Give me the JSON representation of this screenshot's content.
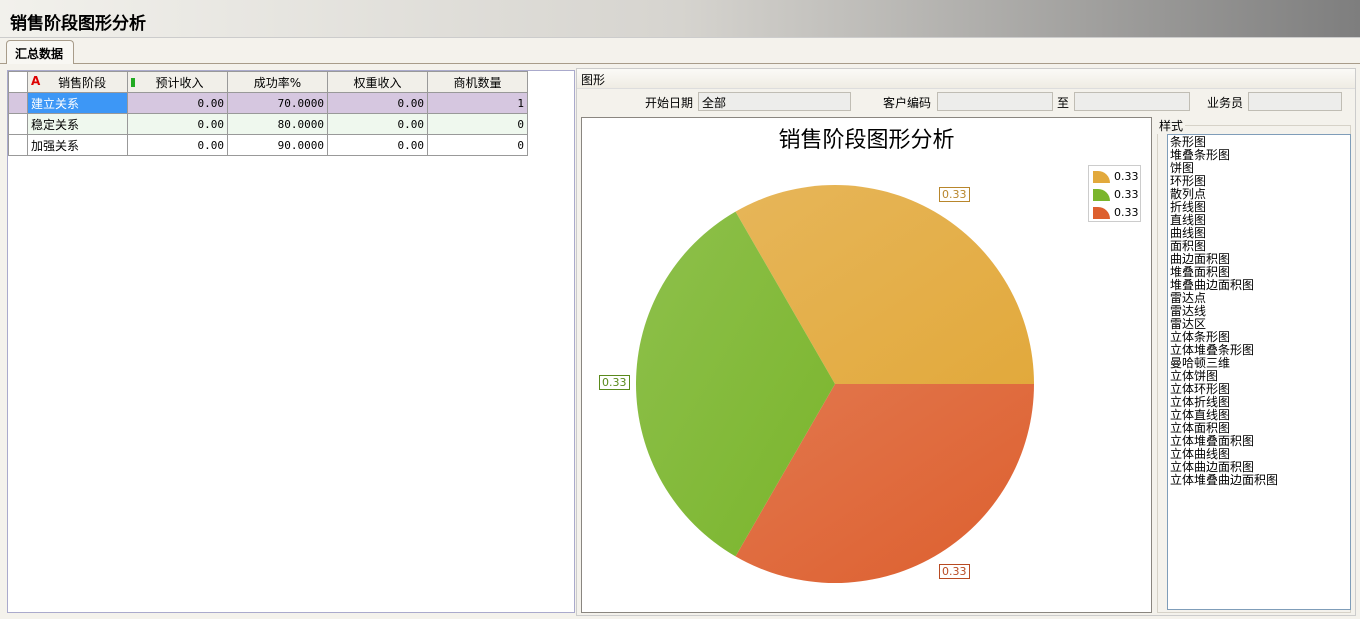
{
  "window": {
    "title": "销售阶段图形分析"
  },
  "tabs": [
    {
      "label": "汇总数据"
    }
  ],
  "grid": {
    "columns": [
      "销售阶段",
      "预计收入",
      "成功率%",
      "权重收入",
      "商机数量"
    ],
    "rows": [
      [
        "建立关系",
        "0.00",
        "70.0000",
        "0.00",
        "1"
      ],
      [
        "稳定关系",
        "0.00",
        "80.0000",
        "0.00",
        "0"
      ],
      [
        "加强关系",
        "0.00",
        "90.0000",
        "0.00",
        "0"
      ]
    ]
  },
  "panel": {
    "title": "图形",
    "filters": {
      "start_date_label": "开始日期",
      "start_date_value": "全部",
      "customer_code_label": "客户编码",
      "customer_code_value": "",
      "to_label": "至",
      "to_value": "",
      "salesman_label": "业务员",
      "salesman_value": ""
    },
    "style_label": "样式",
    "styles": [
      "条形图",
      "堆叠条形图",
      "饼图",
      "环形图",
      "散列点",
      "折线图",
      "直线图",
      "曲线图",
      "面积图",
      "曲边面积图",
      "堆叠面积图",
      "堆叠曲边面积图",
      "雷达点",
      "雷达线",
      "雷达区",
      "立体条形图",
      "立体堆叠条形图",
      "曼哈顿三维",
      "立体饼图",
      "立体环形图",
      "立体折线图",
      "立体直线图",
      "立体面积图",
      "立体堆叠面积图",
      "立体曲线图",
      "立体曲边面积图",
      "立体堆叠曲边面积图"
    ]
  },
  "chart_data": {
    "type": "pie",
    "title": "销售阶段图形分析",
    "legend_position": "top-right",
    "slices": [
      {
        "label": "0.33",
        "value": 0.33,
        "color": "#e2a93c"
      },
      {
        "label": "0.33",
        "value": 0.33,
        "color": "#7ab52c"
      },
      {
        "label": "0.33",
        "value": 0.33,
        "color": "#dd5f2e"
      }
    ]
  }
}
